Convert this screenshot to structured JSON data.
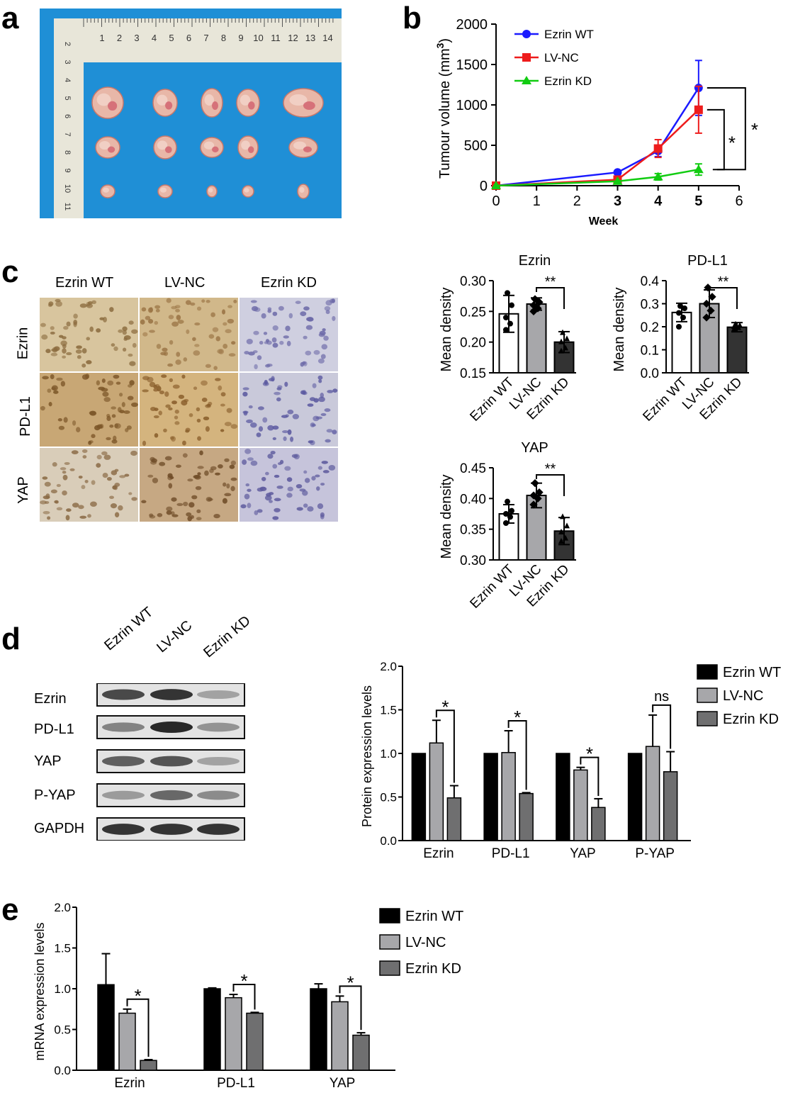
{
  "panels": {
    "a": "a",
    "b": "b",
    "c": "c",
    "d": "d",
    "e": "e"
  },
  "colors": {
    "wt": "#1a1aff",
    "nc": "#ee1c1c",
    "kd": "#11cc11",
    "bar_wt": "#000000",
    "bar_nc": "#a7a7aa",
    "bar_kd": "#6f6f70",
    "photo_bg": "#1f8fd6"
  },
  "ruler": {
    "numbers": [
      "1",
      "2",
      "3",
      "4",
      "5",
      "6",
      "7",
      "8",
      "9",
      "10",
      "11",
      "12",
      "13",
      "14"
    ],
    "side_numbers": [
      "2",
      "3",
      "4",
      "5",
      "6",
      "7",
      "8",
      "9",
      "10",
      "11"
    ]
  },
  "ihc": {
    "columns": [
      "Ezrin WT",
      "LV-NC",
      "Ezrin KD"
    ],
    "rows": [
      "Ezrin",
      "PD-L1",
      "YAP"
    ]
  },
  "blot": {
    "columns": [
      "Ezrin WT",
      "LV-NC",
      "Ezrin KD"
    ],
    "rows": [
      "Ezrin",
      "PD-L1",
      "YAP",
      "P-YAP",
      "GAPDH"
    ]
  },
  "chart_data": [
    {
      "id": "b",
      "type": "line",
      "xlabel": "Week",
      "ylabel": "Tumour volume (mm",
      "ylabel_sup": "3",
      "ylabel_end": ")",
      "xlim": [
        0,
        6
      ],
      "ylim": [
        0,
        2000
      ],
      "xticks": [
        "0",
        "1",
        "2",
        "3",
        "4",
        "5",
        "6"
      ],
      "yticks": [
        "0",
        "500",
        "1000",
        "1500",
        "2000"
      ],
      "legend": [
        "Ezrin WT",
        "LV-NC",
        "Ezrin KD"
      ],
      "legend_position": "top-left",
      "series": [
        {
          "name": "Ezrin WT",
          "x": [
            0,
            3,
            4,
            5
          ],
          "y": [
            0,
            165,
            430,
            1210
          ],
          "err": [
            0,
            0,
            70,
            340
          ]
        },
        {
          "name": "LV-NC",
          "x": [
            0,
            3,
            4,
            5
          ],
          "y": [
            0,
            75,
            460,
            940
          ],
          "err": [
            0,
            0,
            110,
            290
          ]
        },
        {
          "name": "Ezrin KD",
          "x": [
            0,
            3,
            4,
            5
          ],
          "y": [
            0,
            55,
            110,
            200
          ],
          "err": [
            0,
            0,
            40,
            70
          ]
        }
      ],
      "annotations": [
        "*",
        "*"
      ]
    },
    {
      "id": "c1",
      "type": "bar",
      "title": "Ezrin",
      "ylabel": "Mean density",
      "categories": [
        "Ezrin WT",
        "LV-NC",
        "Ezrin KD"
      ],
      "values": [
        0.246,
        0.262,
        0.2
      ],
      "err": [
        0.03,
        0.01,
        0.017
      ],
      "points": [
        [
          0.28,
          0.26,
          0.24,
          0.23,
          0.22
        ],
        [
          0.27,
          0.265,
          0.26,
          0.255,
          0.25
        ],
        [
          0.215,
          0.205,
          0.2,
          0.19,
          0.185
        ]
      ],
      "ylim": [
        0.15,
        0.3
      ],
      "yticks": [
        "0.15",
        "0.20",
        "0.25",
        "0.30"
      ],
      "annotations": [
        "**"
      ]
    },
    {
      "id": "c2",
      "type": "bar",
      "title": "PD-L1",
      "ylabel": "Mean density",
      "categories": [
        "Ezrin WT",
        "LV-NC",
        "Ezrin KD"
      ],
      "values": [
        0.262,
        0.3,
        0.198
      ],
      "err": [
        0.04,
        0.06,
        0.02
      ],
      "points": [
        [
          0.29,
          0.28,
          0.26,
          0.24,
          0.2
        ],
        [
          0.37,
          0.33,
          0.3,
          0.27,
          0.24
        ],
        [
          0.21,
          0.205,
          0.2,
          0.195,
          0.19
        ]
      ],
      "ylim": [
        0,
        0.4
      ],
      "yticks": [
        "0.0",
        "0.1",
        "0.2",
        "0.3",
        "0.4"
      ],
      "annotations": [
        "**"
      ]
    },
    {
      "id": "c3",
      "type": "bar",
      "title": "YAP",
      "ylabel": "Mean density",
      "categories": [
        "Ezrin WT",
        "LV-NC",
        "Ezrin KD"
      ],
      "values": [
        0.375,
        0.405,
        0.347
      ],
      "err": [
        0.015,
        0.02,
        0.022
      ],
      "points": [
        [
          0.395,
          0.38,
          0.375,
          0.37,
          0.36
        ],
        [
          0.425,
          0.41,
          0.405,
          0.4,
          0.39
        ],
        [
          0.37,
          0.355,
          0.345,
          0.335,
          0.33
        ]
      ],
      "ylim": [
        0.3,
        0.45
      ],
      "yticks": [
        "0.30",
        "0.35",
        "0.40",
        "0.45"
      ],
      "annotations": [
        "**"
      ]
    },
    {
      "id": "d",
      "type": "bar",
      "ylabel": "Protein expression levels",
      "categories": [
        "Ezrin",
        "PD-L1",
        "YAP",
        "P-YAP"
      ],
      "series": [
        {
          "name": "Ezrin WT",
          "values": [
            1.0,
            1.0,
            1.0,
            1.0
          ],
          "err": [
            0,
            0,
            0,
            0
          ]
        },
        {
          "name": "LV-NC",
          "values": [
            1.12,
            1.01,
            0.81,
            1.08
          ],
          "err": [
            0.26,
            0.25,
            0.03,
            0.36
          ]
        },
        {
          "name": "Ezrin KD",
          "values": [
            0.49,
            0.54,
            0.38,
            0.79
          ],
          "err": [
            0.14,
            0.01,
            0.1,
            0.23
          ]
        }
      ],
      "ylim": [
        0,
        2.0
      ],
      "yticks": [
        "0.0",
        "0.5",
        "1.0",
        "1.5",
        "2.0"
      ],
      "legend": [
        "Ezrin WT",
        "LV-NC",
        "Ezrin KD"
      ],
      "legend_position": "top-right",
      "annotations": [
        "*",
        "*",
        "*",
        "ns"
      ]
    },
    {
      "id": "e",
      "type": "bar",
      "ylabel": "mRNA expression levels",
      "categories": [
        "Ezrin",
        "PD-L1",
        "YAP"
      ],
      "series": [
        {
          "name": "Ezrin WT",
          "values": [
            1.05,
            1.0,
            1.0
          ],
          "err": [
            0.38,
            0.01,
            0.06
          ]
        },
        {
          "name": "LV-NC",
          "values": [
            0.7,
            0.89,
            0.84
          ],
          "err": [
            0.05,
            0.04,
            0.07
          ]
        },
        {
          "name": "Ezrin KD",
          "values": [
            0.12,
            0.7,
            0.43
          ],
          "err": [
            0.01,
            0.01,
            0.03
          ]
        }
      ],
      "ylim": [
        0,
        2.0
      ],
      "yticks": [
        "0.0",
        "0.5",
        "1.0",
        "1.5",
        "2.0"
      ],
      "legend": [
        "Ezrin WT",
        "LV-NC",
        "Ezrin KD"
      ],
      "legend_position": "top-right",
      "annotations": [
        "*",
        "*",
        "*"
      ]
    }
  ]
}
